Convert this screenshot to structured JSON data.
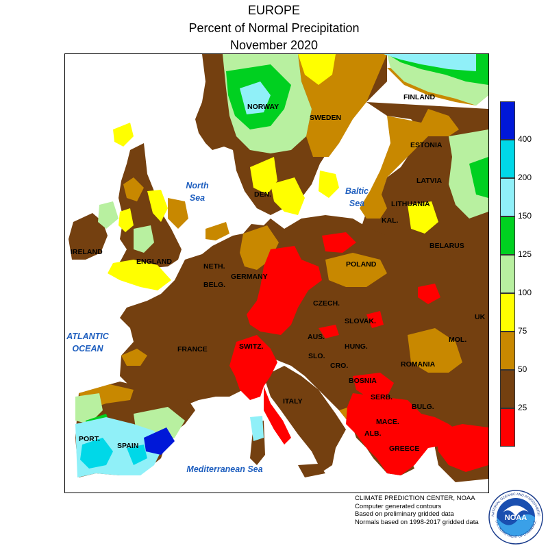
{
  "header": {
    "line1": "EUROPE",
    "line2": "Percent of Normal Precipitation",
    "line3": "November 2020"
  },
  "map": {
    "water_labels": {
      "north_sea_1": "North",
      "north_sea_2": "Sea",
      "baltic_1": "Baltic",
      "baltic_2": "Sea",
      "atlantic_1": "ATLANTIC",
      "atlantic_2": "OCEAN",
      "med": "Mediterranean Sea"
    },
    "countries": {
      "finland": "FINLAND",
      "norway": "NORWAY",
      "sweden": "SWEDEN",
      "estonia": "ESTONIA",
      "latvia": "LATVIA",
      "lithuania": "LITHUANIA",
      "kal": "KAL.",
      "belarus": "BELARUS",
      "den": "DEN.",
      "ireland": "IRELAND",
      "england": "ENGLAND",
      "neth": "NETH.",
      "belg": "BELG.",
      "germany": "GERMANY",
      "poland": "POLAND",
      "czech": "CZECH.",
      "slovak": "SLOVAK.",
      "ukr": "UK",
      "aus": "AUS.",
      "hung": "HUNG.",
      "mol": "MOL.",
      "france": "FRANCE",
      "switz": "SWITZ.",
      "slo": "SLO.",
      "cro": "CRO.",
      "bosnia": "BOSNIA",
      "romania": "ROMANIA",
      "serb": "SERB.",
      "bulg": "BULG.",
      "italy": "ITALY",
      "port": "PORT.",
      "spain": "SPAIN",
      "alb": "ALB.",
      "mace": "MACE.",
      "greece": "GREECE"
    }
  },
  "legend": {
    "labels": [
      "400",
      "200",
      "150",
      "125",
      "100",
      "75",
      "50",
      "25"
    ],
    "colors": [
      "#0018d8",
      "#00d8e8",
      "#90f0f8",
      "#00d020",
      "#b8f0a0",
      "#ffff00",
      "#c88800",
      "#744010",
      "#ff0000"
    ]
  },
  "credits": {
    "line1": "CLIMATE PREDICTION CENTER, NOAA",
    "line2": "Computer generated contours",
    "line3": "Based on preliminary gridded data",
    "line4": "Normals based on 1998-2017 gridded data"
  },
  "logo": {
    "text": "NOAA",
    "ring_top": "NATIONAL OCEANIC AND ATMOSPHERIC",
    "ring_bottom": "U.S. DEPARTMENT OF COMMERCE"
  }
}
